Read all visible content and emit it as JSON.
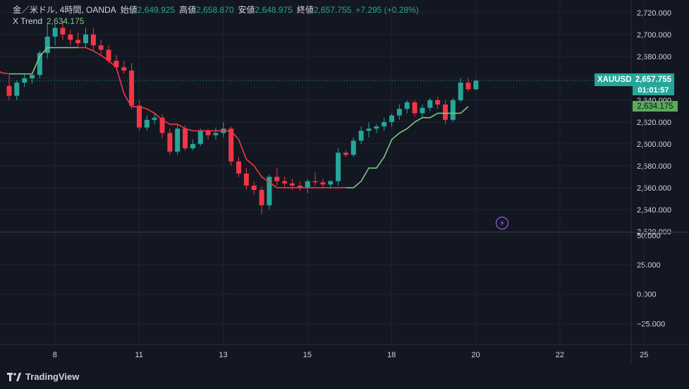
{
  "legend": {
    "symbol": "金／米ドル, 4時間, OANDA",
    "open_label": "始値",
    "open": "2,649.925",
    "high_label": "高値",
    "high": "2,658.870",
    "low_label": "安値",
    "low": "2,648.975",
    "close_label": "終値",
    "close": "2,657.755",
    "change": "+7.295 (+0.28%)",
    "indicator_name": "X Trend",
    "indicator_value": "2,634.175"
  },
  "price_tag": {
    "symbol": "XAUUSD",
    "price": "2,657.755",
    "countdown": "01:01:57"
  },
  "trend_tag": {
    "value": "2,634.175"
  },
  "footer": {
    "brand": "TradingView"
  },
  "colors": {
    "up": "#26a69a",
    "down": "#f23645",
    "trend_up": "#7ec87e",
    "trend_down": "#f23645",
    "background": "#131722",
    "grid": "#1f2433"
  },
  "chart_data": {
    "type": "candlestick",
    "price_axis": {
      "ticks": [
        "2,720.000",
        "2,700.000",
        "2,680.000",
        "2,660.000",
        "2,640.000",
        "2,620.000",
        "2,600.000",
        "2,580.000",
        "2,560.000",
        "2,540.000",
        "2,520.000"
      ],
      "tick_values": [
        2720,
        2700,
        2680,
        2660,
        2640,
        2620,
        2600,
        2580,
        2560,
        2540,
        2520
      ],
      "range": [
        2520,
        2725
      ]
    },
    "indicator_axis": {
      "ticks": [
        "50.000",
        "25.000",
        "0.000",
        "−25.000"
      ],
      "tick_values": [
        50,
        25,
        0,
        -25
      ],
      "range": [
        -38,
        52
      ]
    },
    "x_axis": {
      "labels": [
        "8",
        "11",
        "13",
        "15",
        "18",
        "20",
        "22",
        "25"
      ],
      "label_bar_index": [
        8,
        19,
        30,
        41,
        52,
        63,
        74,
        85
      ]
    },
    "candles": [
      [
        2653,
        2663,
        2640,
        2644
      ],
      [
        2644,
        2658,
        2640,
        2656
      ],
      [
        2656,
        2664,
        2652,
        2660
      ],
      [
        2660,
        2665,
        2655,
        2663
      ],
      [
        2663,
        2685,
        2660,
        2683
      ],
      [
        2683,
        2710,
        2678,
        2698
      ],
      [
        2698,
        2710,
        2690,
        2706
      ],
      [
        2706,
        2712,
        2695,
        2700
      ],
      [
        2700,
        2704,
        2690,
        2695
      ],
      [
        2695,
        2702,
        2688,
        2692
      ],
      [
        2692,
        2706,
        2688,
        2700
      ],
      [
        2700,
        2706,
        2685,
        2690
      ],
      [
        2690,
        2695,
        2682,
        2686
      ],
      [
        2686,
        2690,
        2674,
        2676
      ],
      [
        2676,
        2681,
        2668,
        2670
      ],
      [
        2670,
        2676,
        2664,
        2667
      ],
      [
        2667,
        2674,
        2632,
        2635
      ],
      [
        2635,
        2640,
        2612,
        2615
      ],
      [
        2615,
        2626,
        2612,
        2622
      ],
      [
        2622,
        2628,
        2618,
        2624
      ],
      [
        2624,
        2627,
        2605,
        2610
      ],
      [
        2610,
        2614,
        2590,
        2593
      ],
      [
        2593,
        2618,
        2590,
        2614
      ],
      [
        2614,
        2617,
        2594,
        2596
      ],
      [
        2596,
        2604,
        2594,
        2600
      ],
      [
        2600,
        2614,
        2598,
        2612
      ],
      [
        2612,
        2614,
        2604,
        2608
      ],
      [
        2608,
        2615,
        2604,
        2610
      ],
      [
        2610,
        2620,
        2606,
        2614
      ],
      [
        2614,
        2616,
        2580,
        2584
      ],
      [
        2584,
        2588,
        2570,
        2573
      ],
      [
        2573,
        2578,
        2558,
        2562
      ],
      [
        2562,
        2566,
        2554,
        2558
      ],
      [
        2558,
        2561,
        2536,
        2544
      ],
      [
        2544,
        2572,
        2540,
        2570
      ],
      [
        2570,
        2578,
        2562,
        2566
      ],
      [
        2566,
        2570,
        2560,
        2564
      ],
      [
        2564,
        2568,
        2558,
        2562
      ],
      [
        2562,
        2566,
        2557,
        2560
      ],
      [
        2560,
        2568,
        2555,
        2566
      ],
      [
        2566,
        2574,
        2562,
        2565
      ],
      [
        2565,
        2568,
        2560,
        2563
      ],
      [
        2563,
        2567,
        2559,
        2566
      ],
      [
        2566,
        2596,
        2562,
        2592
      ],
      [
        2592,
        2594,
        2588,
        2590
      ],
      [
        2590,
        2606,
        2588,
        2603
      ],
      [
        2603,
        2616,
        2600,
        2612
      ],
      [
        2612,
        2620,
        2606,
        2614
      ],
      [
        2614,
        2618,
        2610,
        2616
      ],
      [
        2616,
        2624,
        2612,
        2620
      ],
      [
        2620,
        2628,
        2616,
        2626
      ],
      [
        2626,
        2636,
        2622,
        2632
      ],
      [
        2632,
        2640,
        2628,
        2638
      ],
      [
        2638,
        2640,
        2625,
        2628
      ],
      [
        2628,
        2636,
        2624,
        2633
      ],
      [
        2633,
        2642,
        2630,
        2640
      ],
      [
        2640,
        2643,
        2632,
        2636
      ],
      [
        2636,
        2640,
        2618,
        2622
      ],
      [
        2622,
        2642,
        2620,
        2640
      ],
      [
        2640,
        2660,
        2638,
        2656
      ],
      [
        2656,
        2660,
        2648,
        2650
      ],
      [
        2649.925,
        2658.87,
        2648.975,
        2657.755
      ]
    ],
    "bar_x_start": 13,
    "bar_x_step": 10.85,
    "trend": {
      "name": "X Trend",
      "segments": [
        {
          "dir": "down",
          "values": [
            2670,
            2665,
            2664
          ]
        },
        {
          "dir": "up",
          "values": [
            2664,
            2664,
            2664,
            2664,
            2680,
            2688,
            2688,
            2688,
            2688,
            2688
          ]
        },
        {
          "dir": "down",
          "values": [
            2688,
            2688,
            2685,
            2681,
            2676,
            2670,
            2646,
            2634,
            2634,
            2632,
            2628,
            2622,
            2618,
            2618,
            2614,
            2612,
            2612,
            2612,
            2612,
            2612,
            2612,
            2604,
            2586,
            2580,
            2570,
            2565,
            2560
          ]
        },
        {
          "dir": "down",
          "values": [
            2560,
            2560,
            2560,
            2560,
            2560,
            2560,
            2560,
            2560,
            2560,
            2560
          ]
        },
        {
          "dir": "up",
          "values": [
            2560,
            2560,
            2566,
            2578,
            2578,
            2588,
            2604,
            2610,
            2614,
            2620,
            2624,
            2624,
            2628,
            2628,
            2628,
            2628,
            2634.175
          ]
        }
      ]
    }
  }
}
